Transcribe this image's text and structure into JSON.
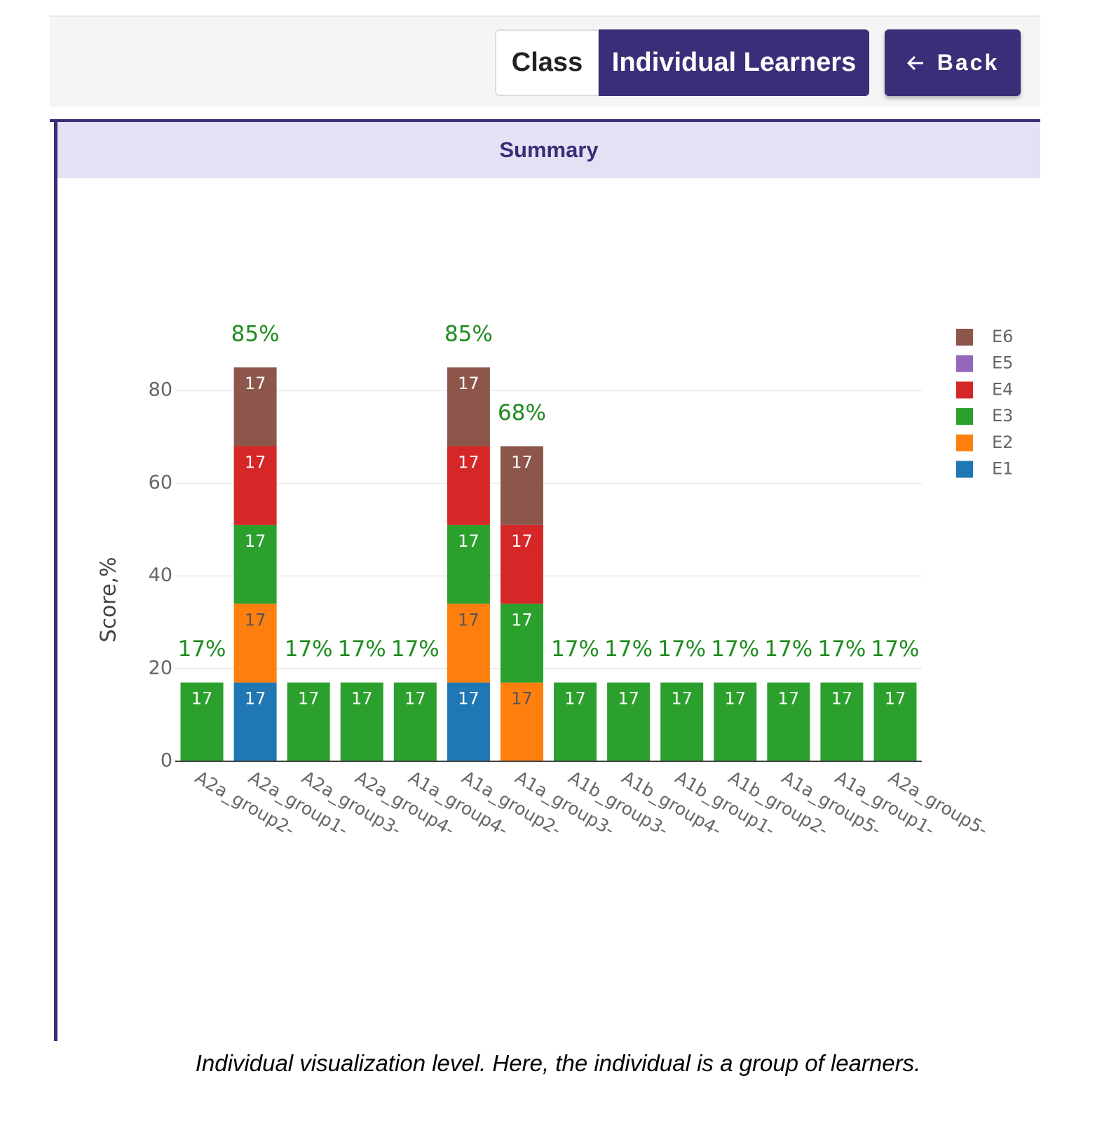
{
  "header": {
    "tabs": [
      "Class",
      "Individual Learners"
    ],
    "back": "Back"
  },
  "panel_title": "Summary",
  "chart_data": {
    "type": "stacked-bar",
    "ylabel": "Score,%",
    "categories": [
      "A2a_group2-",
      "A2a_group1-",
      "A2a_group3-",
      "A2a_group4-",
      "A1a_group4-",
      "A1a_group2-",
      "A1a_group3-",
      "A1b_group3-",
      "A1b_group4-",
      "A1b_group1-",
      "A1b_group2-",
      "A1a_group5-",
      "A1a_group1-",
      "A2a_group5-"
    ],
    "series": [
      {
        "name": "E1",
        "color": "#1f77b4",
        "values": [
          null,
          17,
          null,
          null,
          null,
          17,
          null,
          null,
          null,
          null,
          null,
          null,
          null,
          null
        ]
      },
      {
        "name": "E2",
        "color": "#ff7f0e",
        "values": [
          null,
          17,
          null,
          null,
          null,
          17,
          17,
          null,
          null,
          null,
          null,
          null,
          null,
          null
        ]
      },
      {
        "name": "E3",
        "color": "#2ca02c",
        "values": [
          17,
          17,
          17,
          17,
          17,
          17,
          17,
          17,
          17,
          17,
          17,
          17,
          17,
          17
        ]
      },
      {
        "name": "E4",
        "color": "#d62728",
        "values": [
          null,
          17,
          null,
          null,
          null,
          17,
          17,
          null,
          null,
          null,
          null,
          null,
          null,
          null
        ]
      },
      {
        "name": "E5",
        "color": "#9467bd",
        "values": [
          null,
          null,
          null,
          null,
          null,
          null,
          null,
          null,
          null,
          null,
          null,
          null,
          null,
          null
        ]
      },
      {
        "name": "E6",
        "color": "#8c564b",
        "values": [
          null,
          17,
          null,
          null,
          null,
          17,
          17,
          null,
          null,
          null,
          null,
          null,
          null,
          null
        ]
      }
    ],
    "totals": {
      "color": "#1e8c1e",
      "values": [
        17,
        85,
        17,
        17,
        17,
        85,
        68,
        17,
        17,
        17,
        17,
        17,
        17,
        17
      ],
      "value_labels": [
        "17%",
        "85%",
        "17%",
        "17%",
        "17%",
        "85%",
        "68%",
        "17%",
        "17%",
        "17%",
        "17%",
        "17%",
        "17%",
        "17%"
      ]
    },
    "ylim": [
      0,
      100
    ],
    "yticks": [
      0,
      20,
      40,
      60,
      80
    ],
    "grid": true,
    "legend": "right"
  },
  "caption": "Individual visualization level. Here, the individual is a group of learners."
}
